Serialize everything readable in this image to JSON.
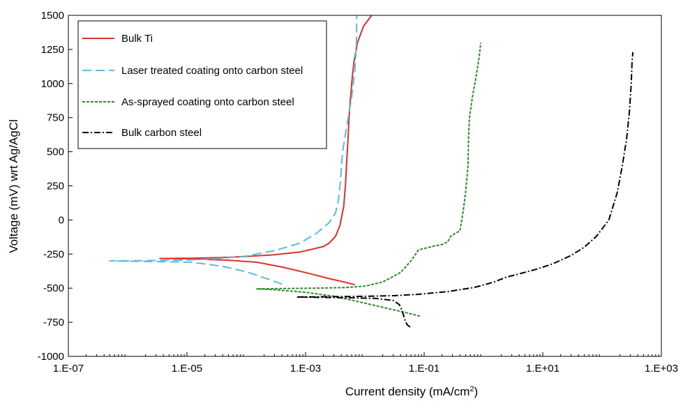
{
  "chart_data": {
    "type": "line",
    "xlabel": "Current density (mA/cm",
    "xlabel_sup": "2",
    "xlabel_close": ")",
    "ylabel": "Voltage (mV) wrt Ag/AgCl",
    "x_scale": "log",
    "xlim": [
      1e-07,
      1000
    ],
    "ylim": [
      -1000,
      1500
    ],
    "x_ticks": [
      {
        "value": 1e-07,
        "label": "1.E-07"
      },
      {
        "value": 1e-05,
        "label": "1.E-05"
      },
      {
        "value": 0.001,
        "label": "1.E-03"
      },
      {
        "value": 0.1,
        "label": "1.E-01"
      },
      {
        "value": 10,
        "label": "1.E+01"
      },
      {
        "value": 1000,
        "label": "1.E+03"
      }
    ],
    "y_ticks": [
      {
        "value": 1500,
        "label": "1500"
      },
      {
        "value": 1250,
        "label": "1250"
      },
      {
        "value": 1000,
        "label": "1000"
      },
      {
        "value": 750,
        "label": "750"
      },
      {
        "value": 500,
        "label": "500"
      },
      {
        "value": 250,
        "label": "250"
      },
      {
        "value": 0,
        "label": "0"
      },
      {
        "value": -250,
        "label": "-250"
      },
      {
        "value": -500,
        "label": "-500"
      },
      {
        "value": -750,
        "label": "-750"
      },
      {
        "value": -1000,
        "label": "-1000"
      }
    ],
    "grid": false,
    "legend_position": "top-left",
    "series": [
      {
        "name": "Bulk Ti",
        "color": "#e0302a",
        "dash": "solid",
        "points": [
          [
            0.0068,
            -475
          ],
          [
            0.0045,
            -455
          ],
          [
            0.0025,
            -430
          ],
          [
            0.0011,
            -390
          ],
          [
            0.0004,
            -345
          ],
          [
            0.00015,
            -310
          ],
          [
            5e-05,
            -295
          ],
          [
            1.1e-05,
            -285
          ],
          [
            3.5e-06,
            -282
          ],
          [
            1.2e-05,
            -280
          ],
          [
            4e-05,
            -275
          ],
          [
            0.0001,
            -268
          ],
          [
            0.0003,
            -255
          ],
          [
            0.0008,
            -235
          ],
          [
            0.0012,
            -218
          ],
          [
            0.002,
            -195
          ],
          [
            0.0025,
            -170
          ],
          [
            0.0032,
            -120
          ],
          [
            0.0038,
            -40
          ],
          [
            0.0044,
            100
          ],
          [
            0.0047,
            250
          ],
          [
            0.0049,
            400
          ],
          [
            0.0052,
            600
          ],
          [
            0.0055,
            800
          ],
          [
            0.006,
            1000
          ],
          [
            0.0065,
            1150
          ],
          [
            0.0075,
            1300
          ],
          [
            0.0095,
            1420
          ],
          [
            0.013,
            1500
          ]
        ]
      },
      {
        "name": "Laser treated coating onto carbon steel",
        "color": "#5bbcde",
        "dash": "long-dash",
        "points": [
          [
            0.0004,
            -470
          ],
          [
            0.00022,
            -430
          ],
          [
            0.0001,
            -380
          ],
          [
            4e-05,
            -340
          ],
          [
            1.2e-05,
            -310
          ],
          [
            5e-07,
            -300
          ],
          [
            2e-06,
            -298
          ],
          [
            1e-05,
            -294
          ],
          [
            3e-05,
            -285
          ],
          [
            0.0001,
            -265
          ],
          [
            0.0003,
            -225
          ],
          [
            0.0008,
            -170
          ],
          [
            0.0015,
            -100
          ],
          [
            0.0025,
            -20
          ],
          [
            0.0032,
            50
          ],
          [
            0.0036,
            150
          ],
          [
            0.0039,
            300
          ],
          [
            0.0042,
            500
          ],
          [
            0.005,
            700
          ],
          [
            0.006,
            900
          ],
          [
            0.0068,
            1100
          ],
          [
            0.0072,
            1300
          ],
          [
            0.0073,
            1500
          ]
        ]
      },
      {
        "name": "As-sprayed coating onto carbon steel",
        "color": "#2a8a2a",
        "dash": "short-dash",
        "points": [
          [
            0.085,
            -705
          ],
          [
            0.05,
            -680
          ],
          [
            0.02,
            -640
          ],
          [
            0.008,
            -600
          ],
          [
            0.003,
            -560
          ],
          [
            0.001,
            -530
          ],
          [
            0.0003,
            -512
          ],
          [
            0.00015,
            -505
          ],
          [
            0.0004,
            -503
          ],
          [
            0.0015,
            -500
          ],
          [
            0.005,
            -495
          ],
          [
            0.01,
            -485
          ],
          [
            0.02,
            -455
          ],
          [
            0.04,
            -385
          ],
          [
            0.06,
            -300
          ],
          [
            0.08,
            -220
          ],
          [
            0.15,
            -190
          ],
          [
            0.2,
            -180
          ],
          [
            0.25,
            -160
          ],
          [
            0.28,
            -120
          ],
          [
            0.33,
            -100
          ],
          [
            0.4,
            -80
          ],
          [
            0.45,
            50
          ],
          [
            0.5,
            200
          ],
          [
            0.55,
            400
          ],
          [
            0.56,
            600
          ],
          [
            0.58,
            750
          ],
          [
            0.65,
            900
          ],
          [
            0.75,
            1050
          ],
          [
            0.85,
            1200
          ],
          [
            0.9,
            1300
          ]
        ]
      },
      {
        "name": "Bulk carbon steel",
        "color": "#000000",
        "dash": "dash-dot",
        "points": [
          [
            0.058,
            -785
          ],
          [
            0.052,
            -770
          ],
          [
            0.048,
            -740
          ],
          [
            0.045,
            -700
          ],
          [
            0.042,
            -660
          ],
          [
            0.038,
            -620
          ],
          [
            0.03,
            -590
          ],
          [
            0.015,
            -575
          ],
          [
            0.005,
            -570
          ],
          [
            0.0007,
            -565
          ],
          [
            0.003,
            -562
          ],
          [
            0.01,
            -560
          ],
          [
            0.03,
            -555
          ],
          [
            0.08,
            -545
          ],
          [
            0.25,
            -525
          ],
          [
            0.7,
            -495
          ],
          [
            1.5,
            -455
          ],
          [
            2.4,
            -420
          ],
          [
            4,
            -395
          ],
          [
            8,
            -360
          ],
          [
            15,
            -320
          ],
          [
            30,
            -260
          ],
          [
            50,
            -200
          ],
          [
            80,
            -120
          ],
          [
            130,
            0
          ],
          [
            180,
            200
          ],
          [
            220,
            400
          ],
          [
            260,
            600
          ],
          [
            290,
            800
          ],
          [
            310,
            1000
          ],
          [
            320,
            1150
          ],
          [
            330,
            1230
          ]
        ]
      }
    ]
  }
}
